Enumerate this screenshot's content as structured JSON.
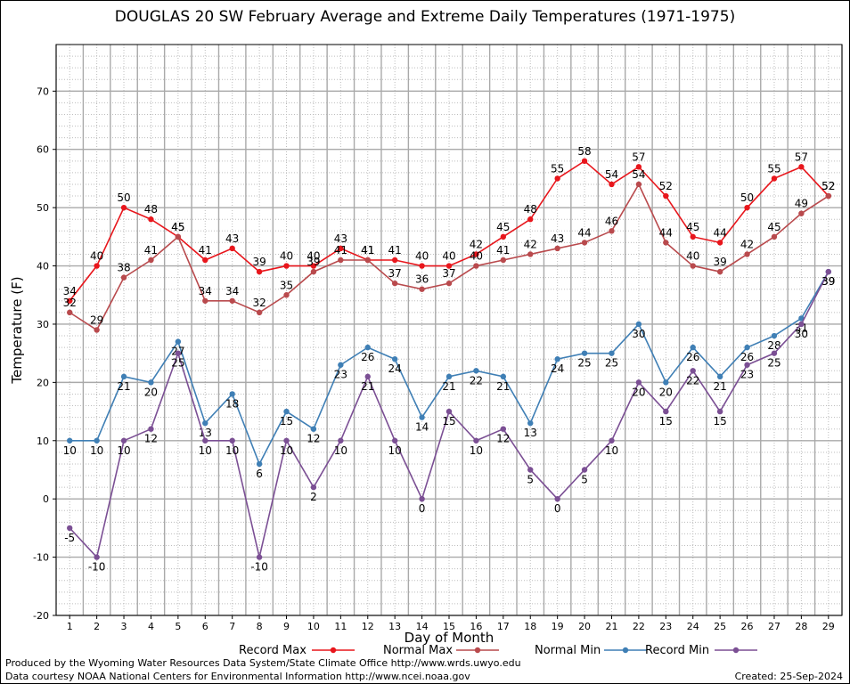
{
  "chart_data": {
    "type": "line",
    "title": "DOUGLAS 20 SW February Average and Extreme Daily Temperatures (1971-1975)",
    "xlabel": "Day of Month",
    "ylabel": "Temperature (F)",
    "ylim": [
      -20,
      78
    ],
    "yticks": [
      -20,
      -10,
      0,
      10,
      20,
      30,
      40,
      50,
      60,
      70
    ],
    "x": [
      1,
      2,
      3,
      4,
      5,
      6,
      7,
      8,
      9,
      10,
      11,
      12,
      13,
      14,
      15,
      16,
      17,
      18,
      19,
      20,
      21,
      22,
      23,
      24,
      25,
      26,
      27,
      28,
      29
    ],
    "grid": true,
    "legend_position": "bottom",
    "series": [
      {
        "name": "Record Max",
        "color": "#e8161c",
        "values": [
          34,
          40,
          50,
          48,
          45,
          41,
          43,
          39,
          40,
          40,
          43,
          41,
          41,
          40,
          40,
          42,
          45,
          48,
          55,
          58,
          54,
          57,
          52,
          45,
          44,
          50,
          55,
          57,
          52
        ]
      },
      {
        "name": "Normal Max",
        "color": "#b94a4d",
        "values": [
          32,
          29,
          38,
          41,
          45,
          34,
          34,
          32,
          35,
          39,
          41,
          41,
          37,
          36,
          37,
          40,
          41,
          42,
          43,
          44,
          46,
          54,
          44,
          40,
          39,
          42,
          45,
          49,
          52
        ]
      },
      {
        "name": "Normal Min",
        "color": "#3f7fb5",
        "values": [
          10,
          10,
          21,
          20,
          27,
          13,
          18,
          6,
          15,
          12,
          23,
          26,
          24,
          14,
          21,
          22,
          21,
          13,
          24,
          25,
          25,
          30,
          20,
          26,
          21,
          26,
          28,
          31,
          39
        ]
      },
      {
        "name": "Record Min",
        "color": "#7b4f94",
        "values": [
          -5,
          -10,
          10,
          12,
          25,
          10,
          10,
          -10,
          10,
          2,
          10,
          21,
          10,
          0,
          15,
          10,
          12,
          5,
          0,
          5,
          10,
          20,
          15,
          22,
          15,
          23,
          25,
          30,
          39
        ]
      }
    ]
  },
  "footer": {
    "produced_by": "Produced by the Wyoming Water Resources Data System/State Climate Office http://www.wrds.uwyo.edu",
    "courtesy": "Data courtesy NOAA National Centers for Environmental Information http://www.ncei.noaa.gov",
    "created": "Created:  25-Sep-2024"
  }
}
